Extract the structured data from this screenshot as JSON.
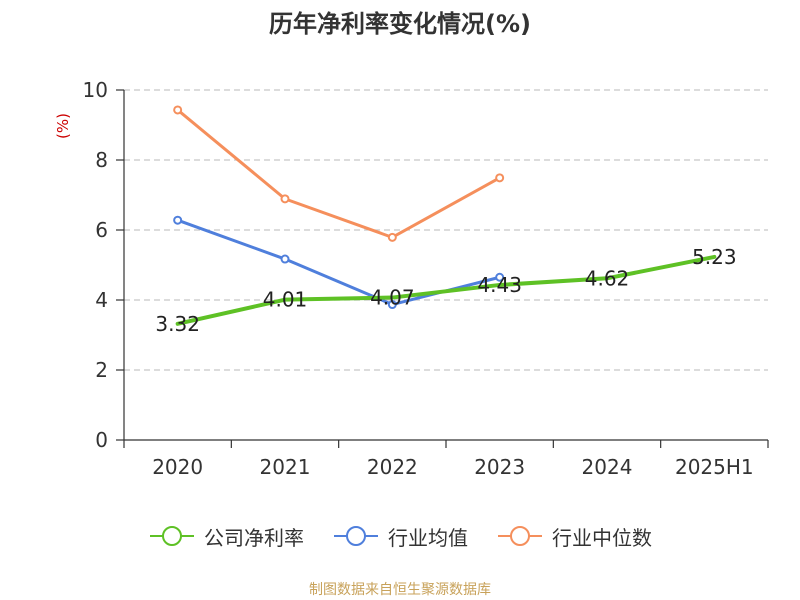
{
  "chart_data": {
    "type": "line",
    "title": "历年净利率变化情况(%)",
    "ylabel": "(%)",
    "categories": [
      "2020",
      "2021",
      "2022",
      "2023",
      "2024",
      "2025H1"
    ],
    "yticks": [
      "0",
      "2",
      "4",
      "6",
      "8",
      "10"
    ],
    "ylim": [
      0,
      10
    ],
    "grid": true,
    "legend_position": "bottom",
    "series": [
      {
        "name": "公司净利率",
        "color": "#5ec125",
        "values": [
          3.32,
          4.01,
          4.07,
          4.43,
          4.62,
          5.23
        ],
        "labels": [
          "3.32",
          "4.01",
          "4.07",
          "4.43",
          "4.62",
          "5.23"
        ],
        "markers": false
      },
      {
        "name": "行业均值",
        "color": "#4f7fdc",
        "values": [
          6.28,
          5.17,
          3.87,
          4.65,
          null,
          null
        ],
        "markers": true
      },
      {
        "name": "行业中位数",
        "color": "#f58f5c",
        "values": [
          9.43,
          6.89,
          5.79,
          7.49,
          null,
          null
        ],
        "markers": true
      }
    ]
  },
  "source": "制图数据来自恒生聚源数据库"
}
